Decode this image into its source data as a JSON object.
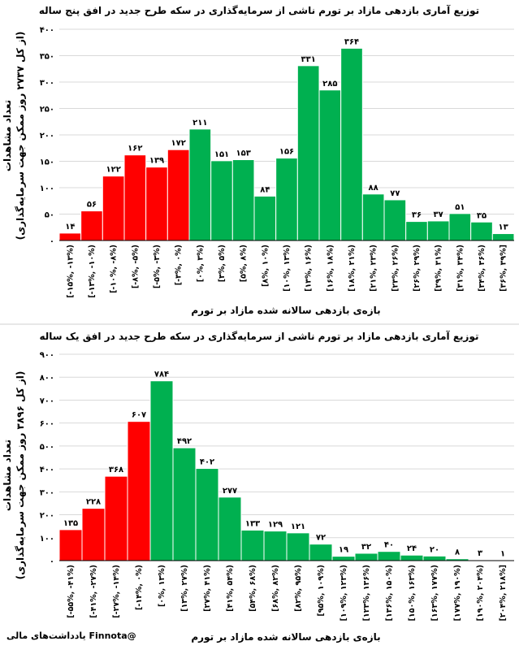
{
  "colors": {
    "negative": "#ff0000",
    "positive": "#00b050",
    "grid": "#d9d9d9",
    "axis": "#000000"
  },
  "footer": {
    "credit": "یادداشت‌های مالی Finnota@"
  },
  "chart_data": [
    {
      "type": "bar",
      "title": "توزیع آماری بازدهی مازاد بر تورم ناشی از سرمایه‌گذاری در سکه طرح جدید در افق پنج ساله",
      "xlabel": "بازه‌ی بازدهی سالانه شده مازاد بر تورم",
      "ylabel": "تعداد مشاهدات",
      "ylabel_sub": "(از کل ۲۷۳۷ روز ممکن جهت سرمایه‌گذاری)",
      "ylim": [
        0,
        400
      ],
      "yticks": [
        0,
        50,
        100,
        150,
        200,
        250,
        300,
        350,
        400
      ],
      "ytick_labels": [
        "۰",
        "۵۰",
        "۱۰۰",
        "۱۵۰",
        "۲۰۰",
        "۲۵۰",
        "۳۰۰",
        "۳۵۰",
        "۴۰۰"
      ],
      "grid": true,
      "categories": [
        "[-۱۵%, -۱۳%)",
        "[-۱۳%, -۱۰%)",
        "[-۱۰%, -۸%)",
        "[-۸%, -۵%)",
        "[-۵%, -۳%)",
        "[-۳%, ۰%)",
        "[۰%, ۳%)",
        "[۳%, ۵%)",
        "[۵%, ۸%)",
        "[۸%, ۱۰%)",
        "[۱۰%, ۱۳%)",
        "[۱۳%, ۱۶%)",
        "[۱۶%, ۱۸%)",
        "[۱۸%, ۲۱%)",
        "[۲۱%, ۲۳%)",
        "[۲۳%, ۲۶%)",
        "[۲۶%, ۲۹%)",
        "[۲۹%, ۳۱%)",
        "[۳۱%, ۳۴%)",
        "[۳۴%, ۳۶%)",
        "[۳۶%, ۳۹%]"
      ],
      "values": [
        14,
        56,
        122,
        162,
        139,
        172,
        211,
        151,
        153,
        84,
        156,
        331,
        285,
        364,
        88,
        77,
        36,
        37,
        51,
        35,
        13
      ],
      "value_labels": [
        "۱۴",
        "۵۶",
        "۱۲۲",
        "۱۶۲",
        "۱۳۹",
        "۱۷۲",
        "۲۱۱",
        "۱۵۱",
        "۱۵۳",
        "۸۴",
        "۱۵۶",
        "۳۳۱",
        "۲۸۵",
        "۳۶۴",
        "۸۸",
        "۷۷",
        "۳۶",
        "۳۷",
        "۵۱",
        "۳۵",
        "۱۳"
      ],
      "negative_count": 6
    },
    {
      "type": "bar",
      "title": "توزیع آماری بازدهی مازاد بر تورم ناشی از سرمایه‌گذاری در سکه طرح جدید در افق یک ساله",
      "xlabel": "بازه‌ی بازدهی سالانه شده مازاد بر تورم",
      "ylabel": "تعداد مشاهدات",
      "ylabel_sub": "(از کل ۳۸۹۶ روز ممکن جهت سرمایه‌گذاری)",
      "ylim": [
        0,
        900
      ],
      "yticks": [
        0,
        100,
        200,
        300,
        400,
        500,
        600,
        700,
        800,
        900
      ],
      "ytick_labels": [
        "۰",
        "۱۰۰",
        "۲۰۰",
        "۳۰۰",
        "۴۰۰",
        "۵۰۰",
        "۶۰۰",
        "۷۰۰",
        "۸۰۰",
        "۹۰۰"
      ],
      "grid": true,
      "categories": [
        "[-۵۵%, -۴۱%)",
        "[-۴۱%, -۲۷%)",
        "[-۲۷%, -۱۴%)",
        "[-۱۴%, ۰%)",
        "[۰%, ۱۳%)",
        "[۱۳%, ۲۷%)",
        "[۲۷%, ۴۱%)",
        "[۴۱%, ۵۴%)",
        "[۵۴%, ۶۸%)",
        "[۶۸%, ۸۲%)",
        "[۸۲%, ۹۵%)",
        "[۹۵%, ۱۰۹%)",
        "[۱۰۹%, ۱۲۳%)",
        "[۱۲۳%, ۱۳۶%)",
        "[۱۳۶%, ۱۵۰%)",
        "[۱۵۰%, ۱۶۳%)",
        "[۱۶۳%, ۱۷۷%)",
        "[۱۷۷%, ۱۹۰%)",
        "[۱۹۰%, ۲۰۴%)",
        "[۲۰۴%, ۲۱۸%]"
      ],
      "values": [
        135,
        228,
        368,
        607,
        784,
        492,
        402,
        277,
        133,
        129,
        121,
        72,
        19,
        32,
        40,
        24,
        20,
        8,
        3,
        1
      ],
      "value_labels": [
        "۱۳۵",
        "۲۲۸",
        "۳۶۸",
        "۶۰۷",
        "۷۸۴",
        "۴۹۲",
        "۴۰۲",
        "۲۷۷",
        "۱۳۳",
        "۱۲۹",
        "۱۲۱",
        "۷۲",
        "۱۹",
        "۳۲",
        "۴۰",
        "۲۴",
        "۲۰",
        "۸",
        "۳",
        "۱"
      ],
      "negative_count": 4
    }
  ]
}
